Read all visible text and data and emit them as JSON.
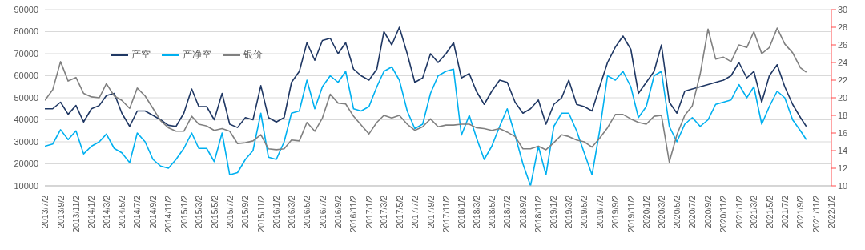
{
  "chart_data": {
    "type": "line",
    "x": [
      "2013-07-02",
      "2013-08-02",
      "2013-09-02",
      "2013-10-02",
      "2013-11-02",
      "2013-12-02",
      "2014-01-02",
      "2014-02-02",
      "2014-03-02",
      "2014-04-02",
      "2014-05-02",
      "2014-06-02",
      "2014-07-02",
      "2014-08-02",
      "2014-09-02",
      "2014-10-02",
      "2014-11-02",
      "2014-12-02",
      "2015-01-02",
      "2015-02-02",
      "2015-03-02",
      "2015-04-02",
      "2015-05-02",
      "2015-06-02",
      "2015-07-02",
      "2015-08-02",
      "2015-09-02",
      "2015-10-02",
      "2015-11-02",
      "2015-12-02",
      "2016-01-02",
      "2016-02-02",
      "2016-03-02",
      "2016-04-02",
      "2016-05-02",
      "2016-06-02",
      "2016-07-02",
      "2016-08-02",
      "2016-09-02",
      "2016-10-02",
      "2016-11-02",
      "2016-12-02",
      "2017-01-02",
      "2017-02-02",
      "2017-03-02",
      "2017-04-02",
      "2017-05-02",
      "2017-06-02",
      "2017-07-02",
      "2017-08-02",
      "2017-09-02",
      "2017-10-02",
      "2017-11-02",
      "2017-12-02",
      "2018-01-02",
      "2018-02-02",
      "2018-03-02",
      "2018-04-02",
      "2018-05-02",
      "2018-06-02",
      "2018-07-02",
      "2018-08-02",
      "2018-09-02",
      "2018-10-02",
      "2018-11-02",
      "2018-12-02",
      "2019-01-02",
      "2019-02-02",
      "2019-03-02",
      "2019-04-02",
      "2019-05-02",
      "2019-06-02",
      "2019-07-02",
      "2019-08-02",
      "2019-09-02",
      "2019-10-02",
      "2019-11-02",
      "2019-12-02",
      "2020-01-02",
      "2020-02-02",
      "2020-03-02",
      "2020-04-02",
      "2020-05-02",
      "2020-06-02",
      "2020-07-02",
      "2020-08-02",
      "2020-09-02",
      "2020-10-02",
      "2020-11-02",
      "2020-12-02",
      "2021-01-02",
      "2021-02-02",
      "2021-03-02",
      "2021-04-02",
      "2021-05-02",
      "2021-06-02",
      "2021-07-02",
      "2021-08-02",
      "2021-09-02",
      "2021-09-25"
    ],
    "series": [
      {
        "name": "产空",
        "color": "#203864",
        "values": [
          45000,
          45000,
          48000,
          42500,
          46500,
          39000,
          45000,
          46500,
          51000,
          52000,
          43000,
          37000,
          44000,
          44000,
          42000,
          40000,
          37500,
          37000,
          43000,
          54000,
          46000,
          46000,
          40000,
          52000,
          38000,
          36500,
          41000,
          40000,
          55500,
          41000,
          39000,
          41000,
          57000,
          62000,
          75000,
          67000,
          76000,
          77000,
          70000,
          75000,
          63000,
          60000,
          58000,
          63000,
          80000,
          74000,
          82000,
          70000,
          57000,
          59000,
          70000,
          66000,
          70000,
          75000,
          59000,
          61000,
          53000,
          47000,
          53000,
          58000,
          57000,
          48000,
          43000,
          45000,
          49000,
          38000,
          47000,
          50000,
          58000,
          47000,
          46000,
          44000,
          55000,
          66000,
          73000,
          78000,
          72000,
          52000,
          57000,
          62000,
          74000,
          48000,
          43000,
          53000,
          54000,
          55000,
          56000,
          57000,
          58000,
          60000,
          66000,
          59000,
          62000,
          48000,
          60000,
          65000,
          55000,
          47000,
          41000,
          37000
        ]
      },
      {
        "name": "产净空",
        "color": "#00b0f0",
        "values": [
          28000,
          29000,
          35500,
          31000,
          35000,
          24500,
          28000,
          30000,
          33500,
          27000,
          25000,
          20500,
          34000,
          30000,
          22000,
          19000,
          18000,
          22000,
          27000,
          34000,
          27000,
          27000,
          21000,
          34000,
          15000,
          16000,
          22000,
          26000,
          43000,
          23000,
          22000,
          30000,
          43000,
          44000,
          58000,
          45000,
          55000,
          60000,
          57000,
          62000,
          45000,
          44000,
          46000,
          55000,
          62000,
          64000,
          58000,
          44000,
          36000,
          38000,
          52000,
          60000,
          62000,
          63000,
          33000,
          42000,
          32000,
          22000,
          28000,
          37000,
          45000,
          33000,
          20000,
          10000,
          28000,
          15000,
          37000,
          43000,
          43000,
          35000,
          25000,
          15000,
          35000,
          60000,
          58000,
          62000,
          55000,
          41000,
          46000,
          60000,
          62000,
          37000,
          30000,
          38000,
          41000,
          37000,
          40000,
          47000,
          48000,
          49000,
          56000,
          50000,
          55000,
          38000,
          46000,
          53000,
          50000,
          40000,
          35000,
          31000
        ]
      },
      {
        "name": "银价",
        "color": "#808080",
        "axis": "y2",
        "values": [
          19.7,
          20.9,
          24.1,
          21.9,
          22.3,
          20.5,
          20.1,
          20.0,
          21.6,
          20.2,
          19.7,
          18.8,
          21.1,
          20.2,
          18.8,
          17.4,
          16.6,
          16.2,
          16.2,
          17.9,
          17.0,
          16.8,
          16.3,
          16.5,
          16.2,
          14.8,
          14.9,
          15.1,
          15.8,
          14.2,
          14.1,
          14.2,
          15.2,
          15.1,
          17.2,
          16.2,
          17.7,
          20.4,
          19.4,
          19.3,
          17.9,
          16.9,
          15.9,
          17.2,
          18.0,
          17.7,
          18.0,
          17.0,
          16.3,
          16.7,
          17.6,
          16.7,
          16.9,
          16.9,
          17.0,
          17.0,
          16.6,
          16.5,
          16.3,
          16.5,
          16.1,
          15.6,
          14.2,
          14.2,
          14.5,
          14.1,
          14.9,
          15.8,
          15.6,
          15.2,
          15.0,
          14.4,
          15.4,
          16.6,
          18.1,
          18.1,
          17.6,
          17.2,
          17.0,
          17.9,
          18.0,
          12.7,
          15.8,
          18.0,
          19.1,
          22.7,
          27.8,
          24.4,
          24.6,
          24.1,
          26.0,
          25.7,
          27.5,
          25.0,
          25.7,
          27.9,
          26.1,
          25.1,
          23.4,
          22.9
        ]
      }
    ],
    "xlim": [
      "2013-07-02",
      "2022-01-02"
    ],
    "xticks": [
      {
        "value": "2013-07-02",
        "label": "2013/7/2"
      },
      {
        "value": "2013-09-02",
        "label": "2013/9/2"
      },
      {
        "value": "2013-11-02",
        "label": "2013/11/2"
      },
      {
        "value": "2014-01-02",
        "label": "2014/1/2"
      },
      {
        "value": "2014-03-02",
        "label": "2014/3/2"
      },
      {
        "value": "2014-05-02",
        "label": "2014/5/2"
      },
      {
        "value": "2014-07-02",
        "label": "2014/7/2"
      },
      {
        "value": "2014-09-02",
        "label": "2014/9/2"
      },
      {
        "value": "2014-11-02",
        "label": "2014/11/2"
      },
      {
        "value": "2015-01-02",
        "label": "2015/1/2"
      },
      {
        "value": "2015-03-02",
        "label": "2015/3/2"
      },
      {
        "value": "2015-05-02",
        "label": "2015/5/2"
      },
      {
        "value": "2015-07-02",
        "label": "2015/7/2"
      },
      {
        "value": "2015-09-02",
        "label": "2015/9/2"
      },
      {
        "value": "2015-11-02",
        "label": "2015/11/2"
      },
      {
        "value": "2016-01-02",
        "label": "2016/1/2"
      },
      {
        "value": "2016-03-02",
        "label": "2016/3/2"
      },
      {
        "value": "2016-05-02",
        "label": "2016/5/2"
      },
      {
        "value": "2016-07-02",
        "label": "2016/7/2"
      },
      {
        "value": "2016-09-02",
        "label": "2016/9/2"
      },
      {
        "value": "2016-11-02",
        "label": "2016/11/2"
      },
      {
        "value": "2017-01-02",
        "label": "2017/1/2"
      },
      {
        "value": "2017-03-02",
        "label": "2017/3/2"
      },
      {
        "value": "2017-05-02",
        "label": "2017/5/2"
      },
      {
        "value": "2017-07-02",
        "label": "2017/7/2"
      },
      {
        "value": "2017-09-02",
        "label": "2017/9/2"
      },
      {
        "value": "2017-11-02",
        "label": "2017/11/2"
      },
      {
        "value": "2018-01-02",
        "label": "2018/1/2"
      },
      {
        "value": "2018-03-02",
        "label": "2018/3/2"
      },
      {
        "value": "2018-05-02",
        "label": "2018/5/2"
      },
      {
        "value": "2018-07-02",
        "label": "2018/7/2"
      },
      {
        "value": "2018-09-02",
        "label": "2018/9/2"
      },
      {
        "value": "2018-11-02",
        "label": "2018/11/2"
      },
      {
        "value": "2019-01-02",
        "label": "2019/1/2"
      },
      {
        "value": "2019-03-02",
        "label": "2019/3/2"
      },
      {
        "value": "2019-05-02",
        "label": "2019/5/2"
      },
      {
        "value": "2019-07-02",
        "label": "2019/7/2"
      },
      {
        "value": "2019-09-02",
        "label": "2019/9/2"
      },
      {
        "value": "2019-11-02",
        "label": "2019/11/2"
      },
      {
        "value": "2020-01-02",
        "label": "2020/1/2"
      },
      {
        "value": "2020-03-02",
        "label": "2020/3/2"
      },
      {
        "value": "2020-05-02",
        "label": "2020/5/2"
      },
      {
        "value": "2020-07-02",
        "label": "2020/7/2"
      },
      {
        "value": "2020-09-02",
        "label": "2020/9/2"
      },
      {
        "value": "2020-11-02",
        "label": "2020/11/2"
      },
      {
        "value": "2021-01-02",
        "label": "2021/1/2"
      },
      {
        "value": "2021-03-02",
        "label": "2021/3/2"
      },
      {
        "value": "2021-05-02",
        "label": "2021/5/2"
      },
      {
        "value": "2021-07-02",
        "label": "2021/7/2"
      },
      {
        "value": "2021-09-02",
        "label": "2021/9/2"
      },
      {
        "value": "2021-11-02",
        "label": "2021/11/2"
      },
      {
        "value": "2022-01-02",
        "label": "2022/1/2"
      }
    ],
    "ylim": [
      10000,
      90000
    ],
    "yticks": [
      10000,
      20000,
      30000,
      40000,
      50000,
      60000,
      70000,
      80000,
      90000
    ],
    "y2lim": [
      10,
      30
    ],
    "y2ticks": [
      10,
      12,
      14,
      16,
      18,
      20,
      22,
      24,
      26,
      28,
      30
    ],
    "grid": "y",
    "legend": "top left",
    "marker": "none",
    "line_style": "solid"
  }
}
